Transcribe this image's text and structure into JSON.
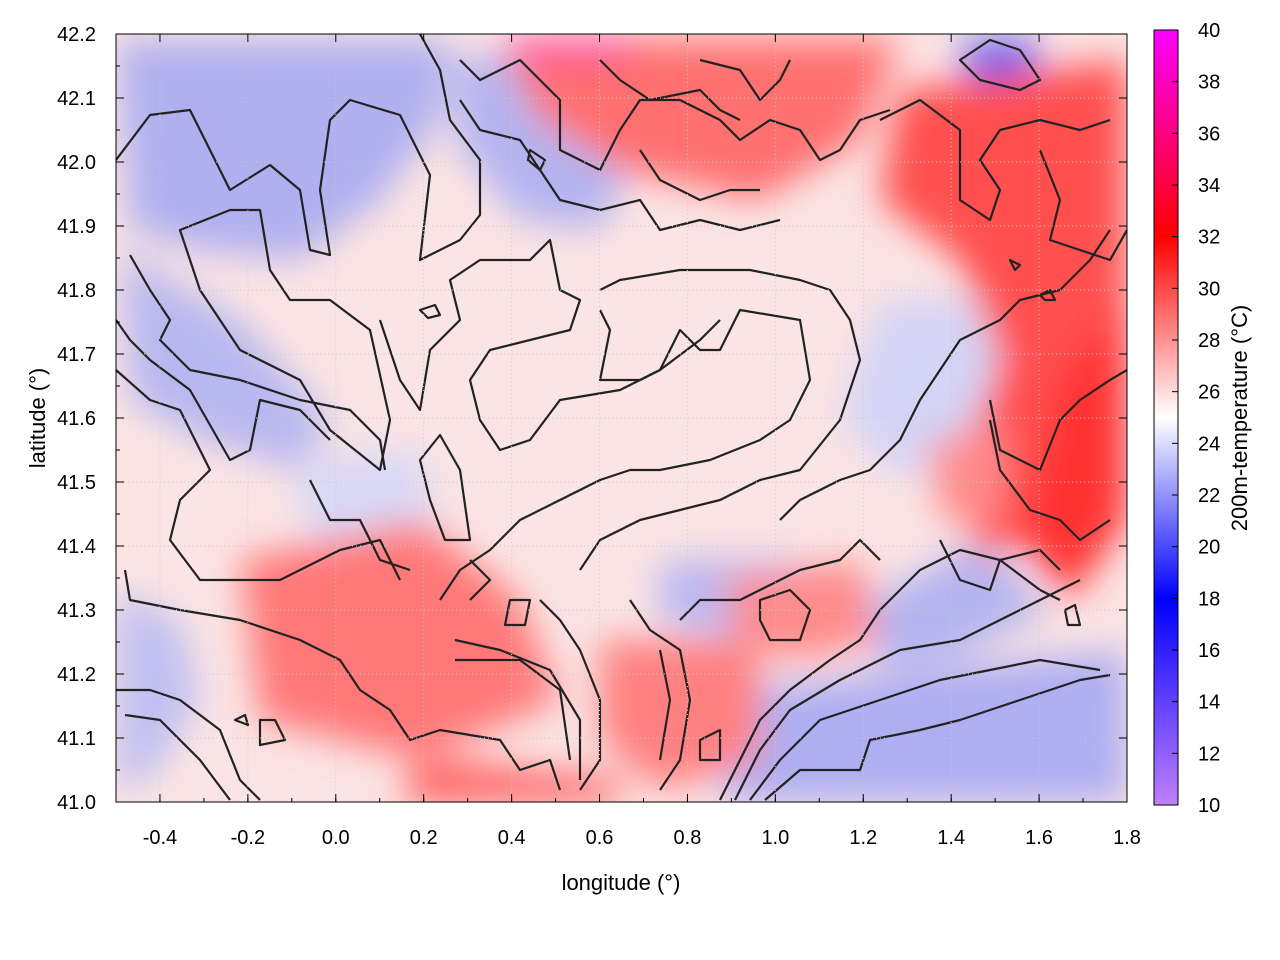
{
  "chart_data": {
    "type": "heatmap",
    "title": "",
    "xlabel": "longitude (°)",
    "ylabel": "latitude (°)",
    "colorbar_label": "200m-temperature (°C)",
    "xlim": [
      -0.5,
      1.8
    ],
    "ylim": [
      41.0,
      42.2
    ],
    "x_ticks": [
      "-0.4",
      "-0.2",
      "0.0",
      "0.2",
      "0.4",
      "0.6",
      "0.8",
      "1.0",
      "1.2",
      "1.4",
      "1.6",
      "1.8"
    ],
    "y_ticks": [
      "41.0",
      "41.1",
      "41.2",
      "41.3",
      "41.4",
      "41.5",
      "41.6",
      "41.7",
      "41.8",
      "41.9",
      "42.0",
      "42.1",
      "42.2"
    ],
    "colorbar_range": [
      10,
      40
    ],
    "colorbar_ticks": [
      "10",
      "12",
      "14",
      "16",
      "18",
      "20",
      "22",
      "24",
      "26",
      "28",
      "30",
      "32",
      "34",
      "36",
      "38",
      "40"
    ],
    "grid": true,
    "colormap_stops": [
      {
        "value": 10,
        "color": "#c080ff"
      },
      {
        "value": 18,
        "color": "#0000ff"
      },
      {
        "value": 25,
        "color": "#ffffff"
      },
      {
        "value": 32,
        "color": "#ff0000"
      },
      {
        "value": 40,
        "color": "#ff00ff"
      }
    ],
    "contour_color": "#222222"
  }
}
